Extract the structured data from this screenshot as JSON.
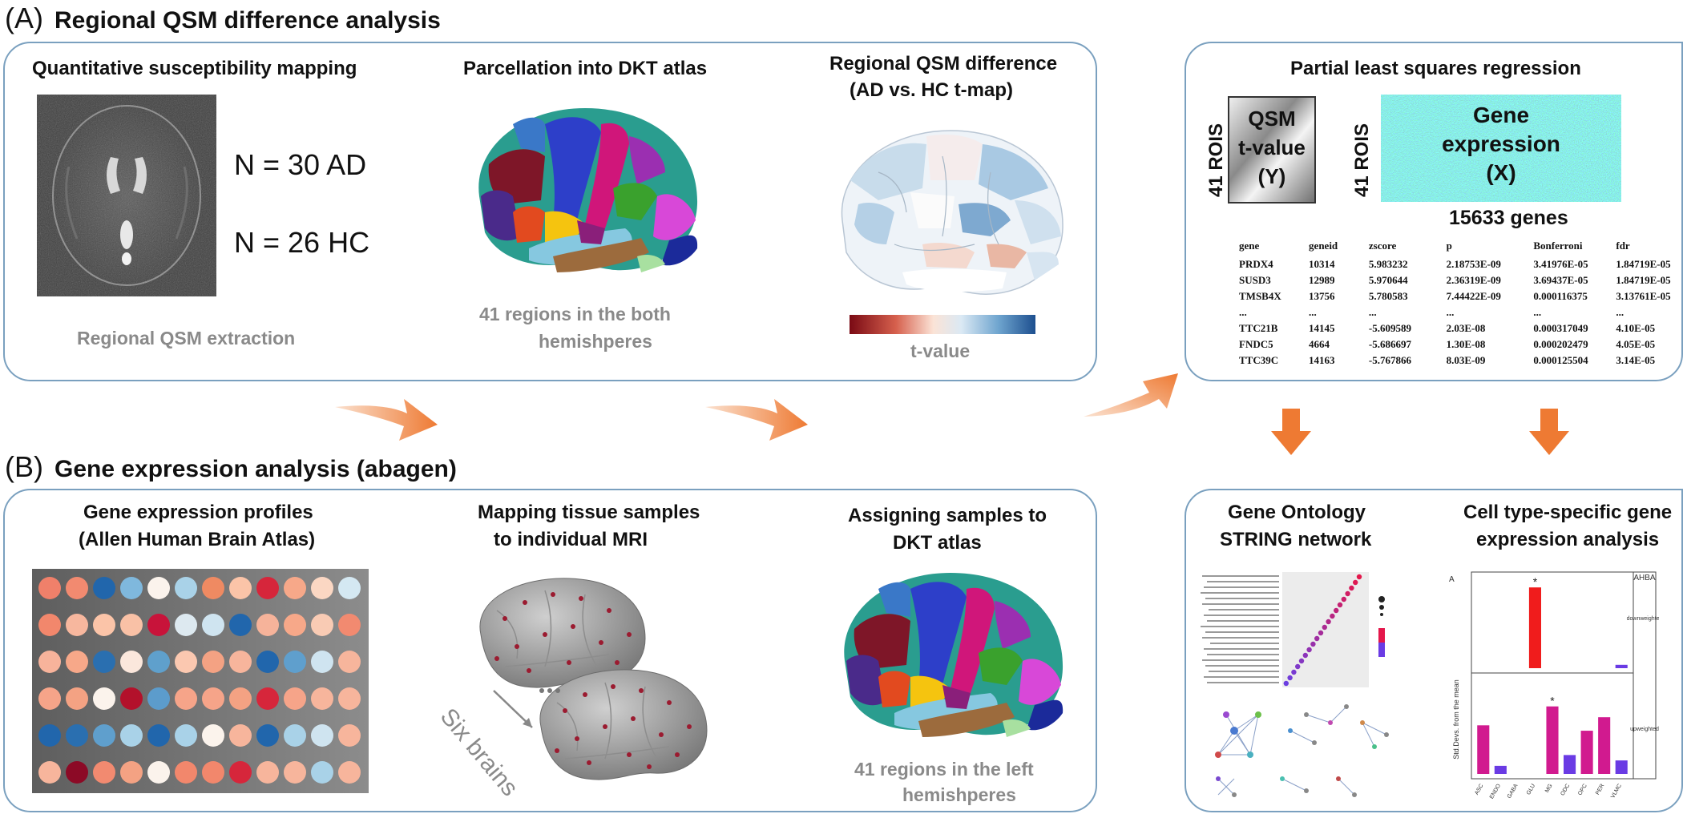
{
  "section_a": {
    "letter": "(A)",
    "title": "Regional QSM difference analysis"
  },
  "section_b": {
    "letter": "(B)",
    "title": "Gene expression analysis (abagen)"
  },
  "qsm_panel": {
    "title": "Quantitative susceptibility mapping",
    "n_ad": "N = 30 AD",
    "n_hc": "N = 26 HC",
    "caption": "Regional QSM extraction"
  },
  "parcellation_panel": {
    "title": "Parcellation into DKT atlas",
    "caption_line1": "41 regions in the both",
    "caption_line2": "hemishperes"
  },
  "difference_panel": {
    "title_line1": "Regional QSM difference",
    "title_line2": "(AD vs. HC t-map)",
    "colorbar_label": "t-value",
    "colorbar_colors": [
      "#7a0a14",
      "#d6604d",
      "#fbe3d6",
      "#dbe9f4",
      "#6fa5cf",
      "#1d4f8f"
    ]
  },
  "pls_panel": {
    "title": "Partial least squares regression",
    "y_box_rows": "41 ROIS",
    "y_box_line1": "QSM",
    "y_box_line2": "t-value",
    "y_box_line3": "(Y)",
    "x_box_rows": "41 ROIS",
    "x_box_line1": "Gene",
    "x_box_line2": "expression",
    "x_box_line3": "(X)",
    "genes_caption": "15633 genes",
    "table_headers": [
      "gene",
      "geneid",
      "zscore",
      "p",
      "Bonferroni",
      "fdr"
    ],
    "table_rows": [
      [
        "PRDX4",
        "10314",
        "5.983232",
        "2.18753E-09",
        "3.41976E-05",
        "1.84719E-05"
      ],
      [
        "SUSD3",
        "12989",
        "5.970644",
        "2.36319E-09",
        "3.69437E-05",
        "1.84719E-05"
      ],
      [
        "TMSB4X",
        "13756",
        "5.780583",
        "7.44422E-09",
        "0.000116375",
        "3.13761E-05"
      ],
      [
        "...",
        "...",
        "...",
        "...",
        "...",
        "..."
      ],
      [
        "TTC21B",
        "14145",
        "-5.609589",
        "2.03E-08",
        "0.000317049",
        "4.10E-05"
      ],
      [
        "FNDC5",
        "4664",
        "-5.686697",
        "1.30E-08",
        "0.000202479",
        "4.05E-05"
      ],
      [
        "TTC39C",
        "14163",
        "-5.767866",
        "8.03E-09",
        "0.000125504",
        "3.14E-05"
      ]
    ]
  },
  "profiles_panel": {
    "title_line1": "Gene expression profiles",
    "title_line2": "(Allen Human Brain Atlas)",
    "dot_colors": [
      [
        "#f0806a",
        "#f28a70",
        "#2166ac",
        "#7fb8dd",
        "#fbf3ec",
        "#a9d2e8",
        "#ef8a62",
        "#fbc4a8",
        "#d6263b",
        "#f7a889",
        "#fbd7c3",
        "#d4e8f2"
      ],
      [
        "#f2876c",
        "#f7b79e",
        "#fbc4a8",
        "#f9c1a6",
        "#c8133a",
        "#dde9f0",
        "#cfe4f0",
        "#2166ac",
        "#f6b39a",
        "#f7a889",
        "#f9cbb4",
        "#f28a70"
      ],
      [
        "#f7b39b",
        "#f7a889",
        "#2a6fb0",
        "#fbe7dc",
        "#5fa0cc",
        "#fbc8b0",
        "#f4a283",
        "#f7b59c",
        "#2166ac",
        "#5f9fcd",
        "#cfe4f0",
        "#f7b59c"
      ],
      [
        "#f6a489",
        "#f4a283",
        "#fbf3ec",
        "#b3112b",
        "#5c9ccc",
        "#f6a489",
        "#f6a489",
        "#f4a283",
        "#d6263b",
        "#f6a489",
        "#f7b59c",
        "#f7b59c"
      ],
      [
        "#2166ac",
        "#2a6fb0",
        "#5f9fcd",
        "#a9d2e8",
        "#2166ac",
        "#a9d2e8",
        "#fbf3ec",
        "#f7b59c",
        "#2166ac",
        "#a9d2e8",
        "#cfe4f0",
        "#f7b59c"
      ],
      [
        "#f7b59c",
        "#8c0a26",
        "#f28a70",
        "#f4a283",
        "#fbf3ec",
        "#f2876c",
        "#f2876c",
        "#d6263b",
        "#f7b59c",
        "#f7b59c",
        "#a9d2e8",
        "#f7b59c"
      ]
    ]
  },
  "mapping_panel": {
    "title_line1": "Mapping tissue samples",
    "title_line2": "to individual MRI",
    "arrow_label": "Six brains"
  },
  "assigning_panel": {
    "title_line1": "Assigning samples to",
    "title_line2": "DKT atlas",
    "caption_line1": "41 regions in the left",
    "caption_line2": "hemishperes"
  },
  "go_panel": {
    "title_line1": "Gene Ontology",
    "title_line2": "STRING network"
  },
  "cell_panel": {
    "title_line1": "Cell type-specific gene",
    "title_line2": "expression analysis",
    "corner_label": "A",
    "strip_title": "AHBA",
    "top_facet": "downweighted",
    "bottom_facet": "upweighted",
    "ylabel": "Std.Devs. from the mean",
    "categories": [
      "ASC",
      "ENDO",
      "GABA",
      "GLU",
      "MG",
      "ODC",
      "OPC",
      "PER",
      "VLMC"
    ],
    "downweighted": [
      0,
      0,
      0,
      3.6,
      0,
      0,
      0,
      0,
      0.15
    ],
    "upweighted": [
      1.8,
      0.3,
      0,
      0,
      2.5,
      0.7,
      1.6,
      2.1,
      0.5
    ],
    "significant": "*"
  }
}
